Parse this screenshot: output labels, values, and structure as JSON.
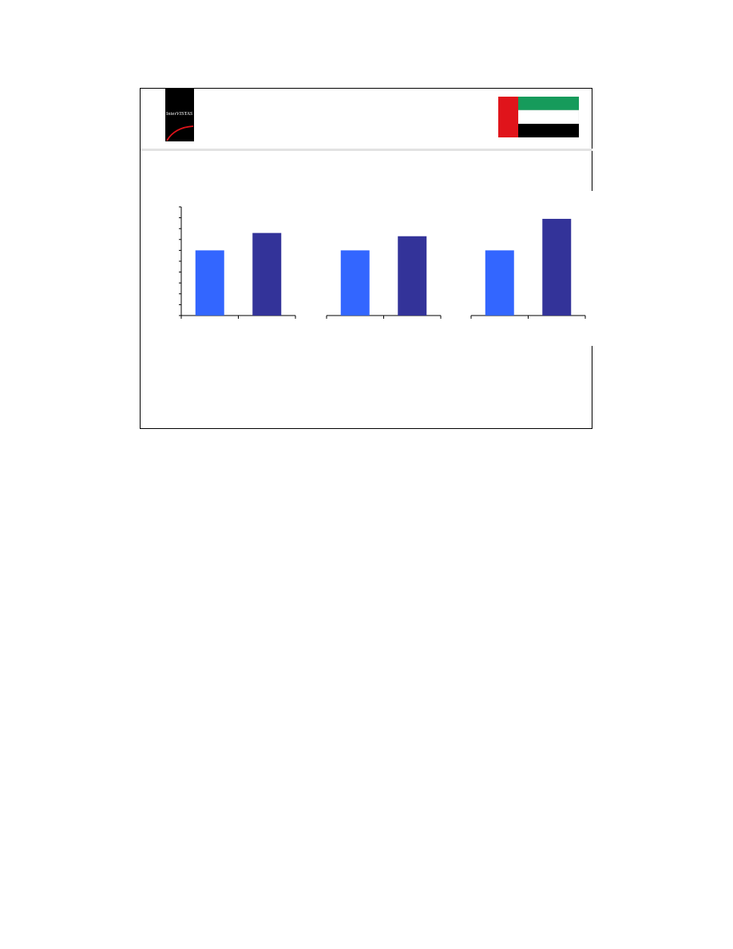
{
  "logo": {
    "text_prefix": "Inter",
    "text_italic": "VISTAS"
  },
  "flag": {
    "name": "uae-flag",
    "colors": {
      "red": "#e0141b",
      "green": "#169b5b",
      "white": "#ffffff",
      "black": "#000000"
    }
  },
  "colors": {
    "light_bar": "#3366ff",
    "dark_bar": "#333399",
    "axis": "#000000"
  },
  "chart_data": {
    "type": "bar",
    "groups": [
      {
        "values": [
          60,
          76
        ]
      },
      {
        "values": [
          60,
          73
        ]
      },
      {
        "values": [
          60,
          89
        ]
      }
    ],
    "ylim": [
      0,
      100
    ],
    "y_ticks": 10,
    "xlabel": "",
    "ylabel": "",
    "title": ""
  }
}
